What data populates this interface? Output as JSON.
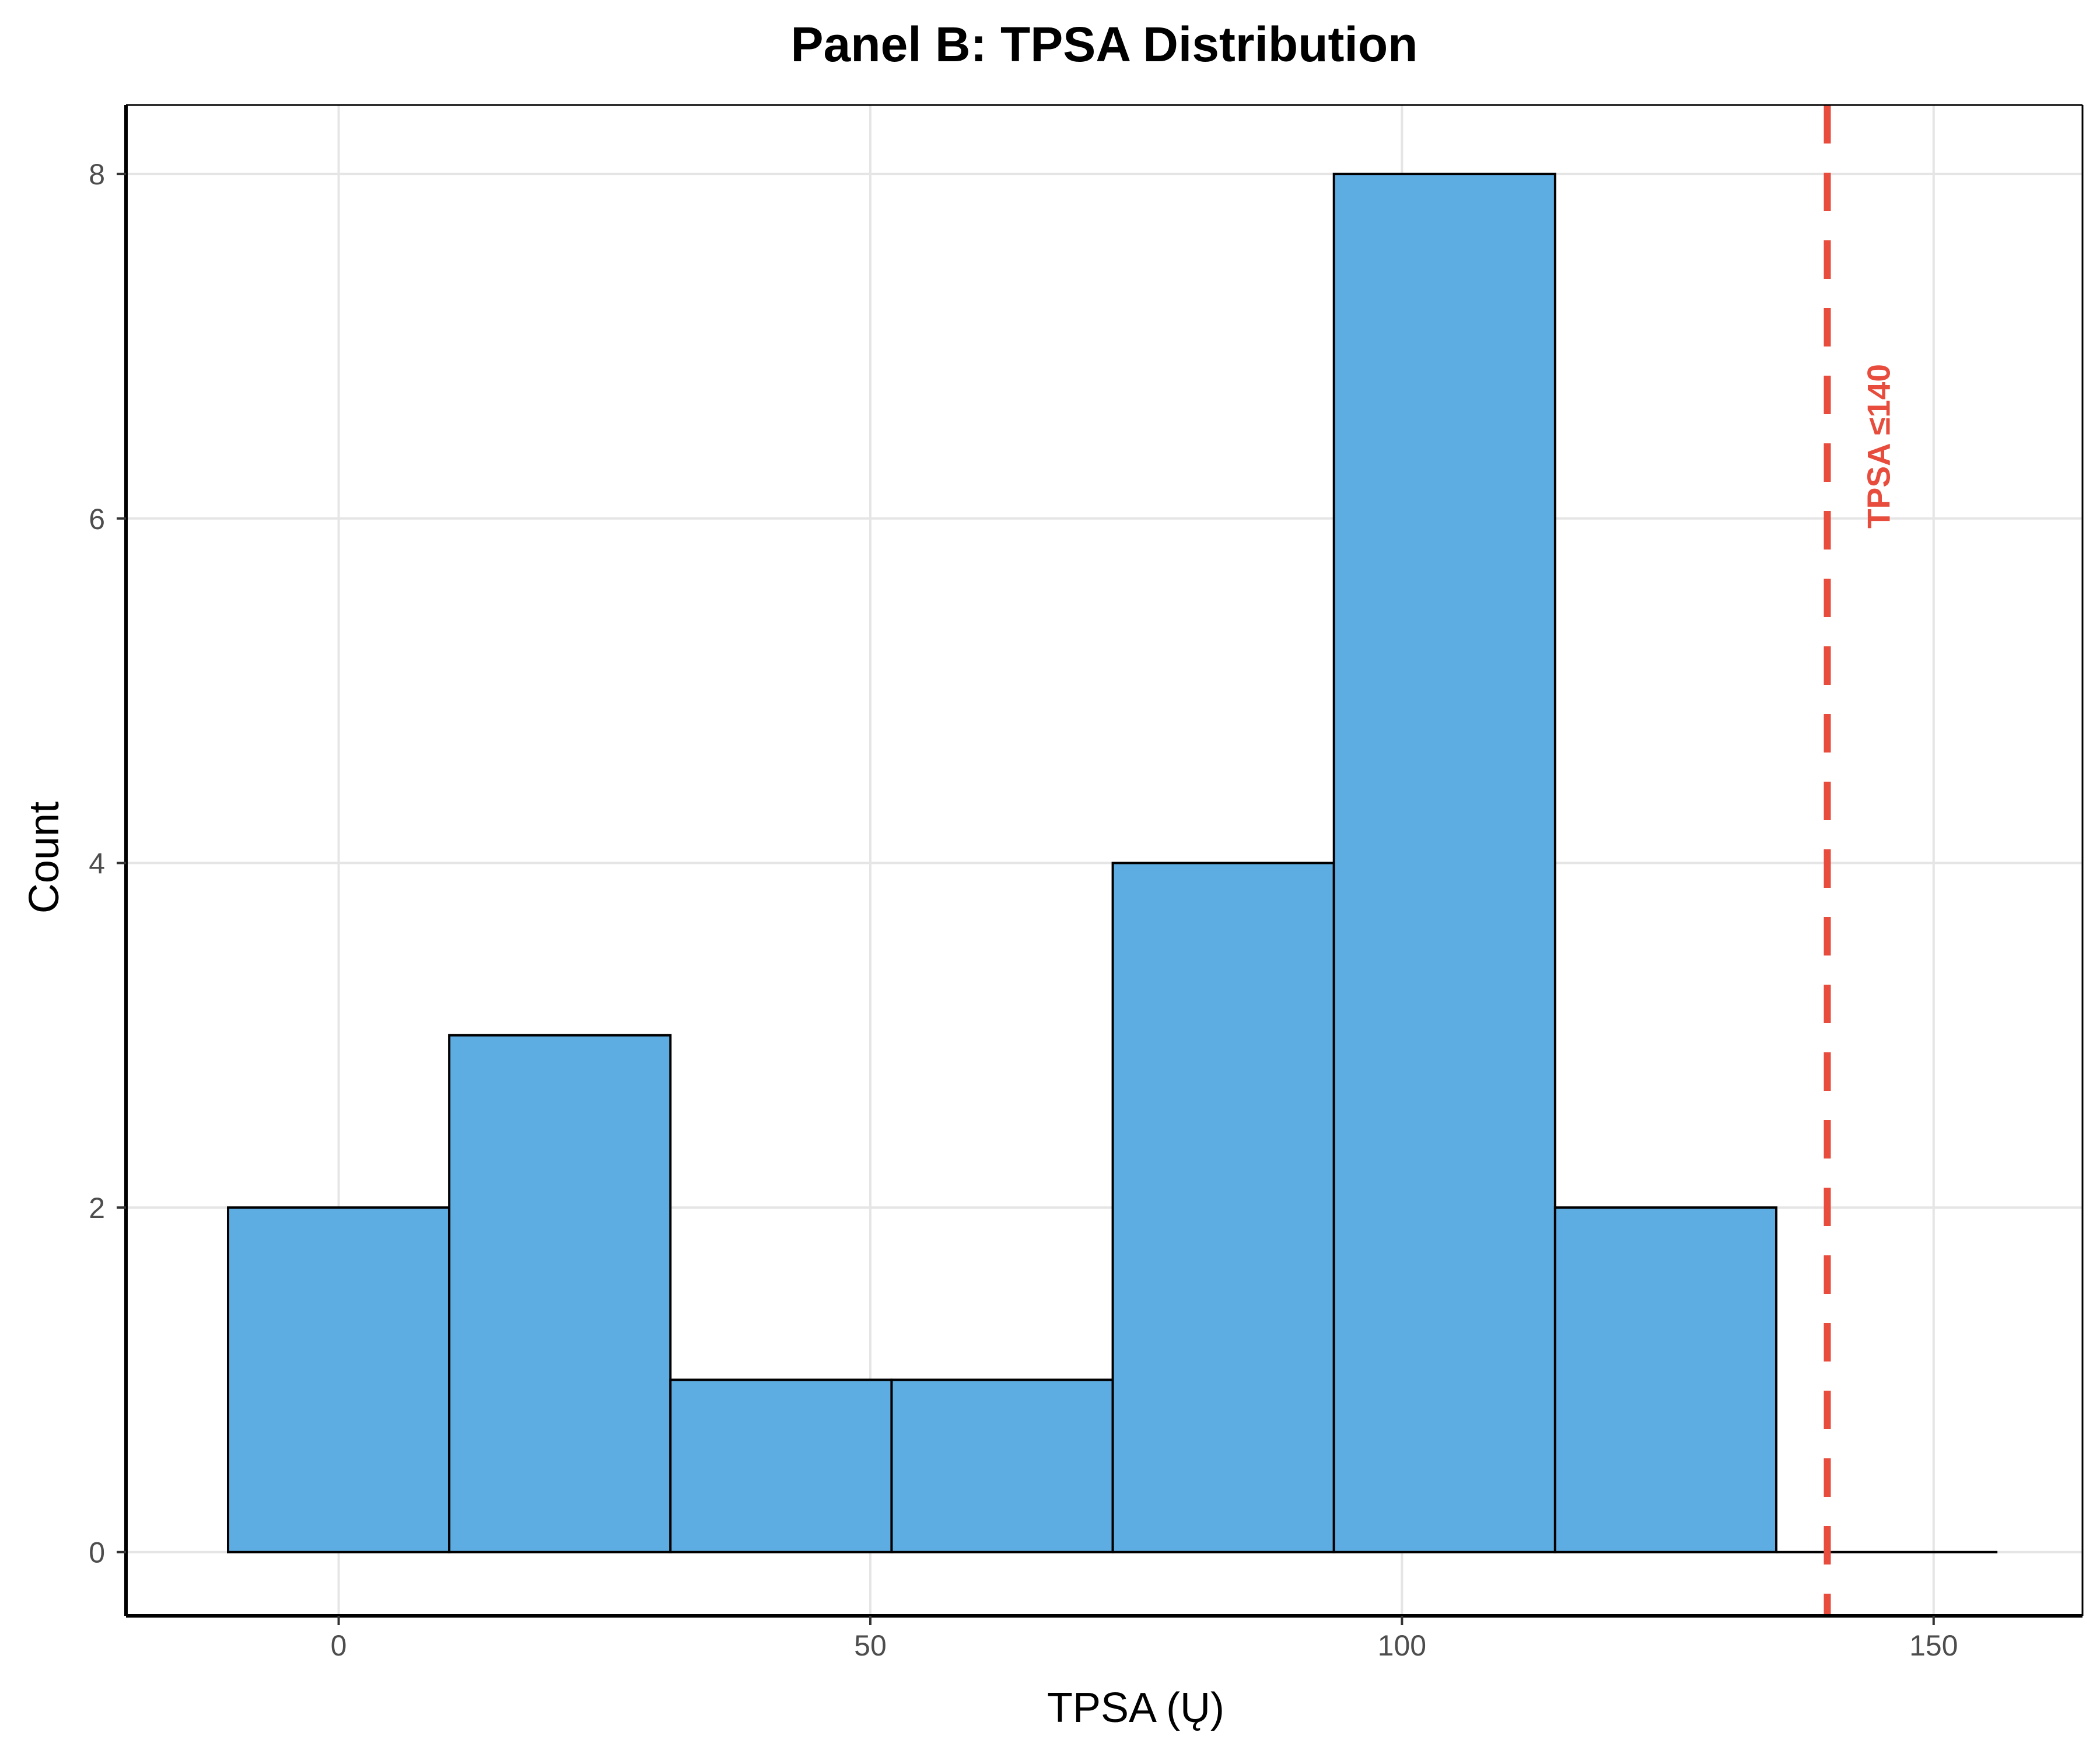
{
  "chart_data": {
    "type": "bar",
    "title": "Panel B: TPSA Distribution",
    "xlabel": "TPSA (Ų)",
    "ylabel": "Count",
    "xlim": [
      -20,
      164
    ],
    "ylim": [
      -0.37,
      8.4
    ],
    "x_ticks": [
      0,
      50,
      100,
      150
    ],
    "y_ticks": [
      0,
      2,
      4,
      6,
      8
    ],
    "grid": true,
    "bins": [
      {
        "x0": -10.4,
        "x1": 10.4,
        "count": 2
      },
      {
        "x0": 10.4,
        "x1": 31.2,
        "count": 3
      },
      {
        "x0": 31.2,
        "x1": 52.0,
        "count": 1
      },
      {
        "x0": 52.0,
        "x1": 72.8,
        "count": 1
      },
      {
        "x0": 72.8,
        "x1": 93.6,
        "count": 4
      },
      {
        "x0": 93.6,
        "x1": 114.4,
        "count": 8
      },
      {
        "x0": 114.4,
        "x1": 135.2,
        "count": 2
      },
      {
        "x0": 135.2,
        "x1": 156.0,
        "count": 0
      }
    ],
    "bar_color": "#5dade2",
    "reference_line": {
      "x": 140,
      "label": "TPSA ≤140",
      "color": "#e74c3c",
      "style": "dashed"
    }
  }
}
